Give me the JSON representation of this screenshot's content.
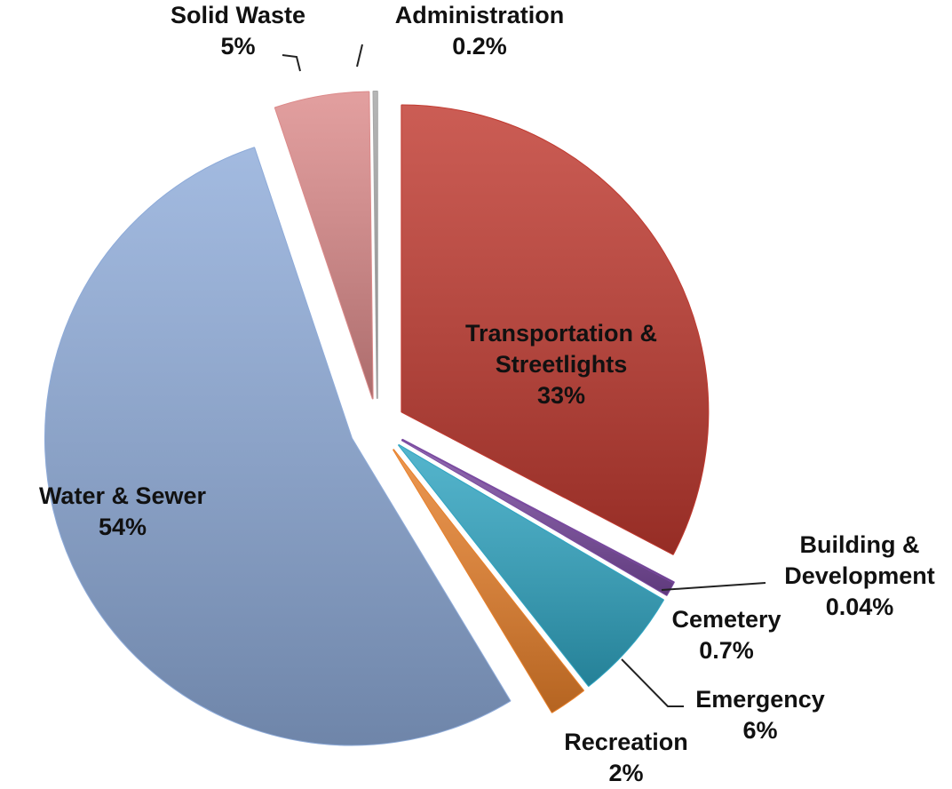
{
  "chart_data": {
    "type": "pie",
    "categories": [
      "Transportation & Streetlights",
      "Building & Development",
      "Cemetery",
      "Emergency",
      "Recreation",
      "Water & Sewer",
      "Solid Waste",
      "Administration"
    ],
    "values": [
      33,
      0.04,
      0.7,
      6,
      2,
      54,
      5,
      0.2
    ],
    "value_labels": [
      "33%",
      "0.04%",
      "0.7%",
      "6%",
      "2%",
      "54%",
      "5%",
      "0.2%"
    ],
    "colors": [
      "#c0392f",
      "#7a4aa0",
      "#7a4aa0",
      "#2fa5c2",
      "#e8802a",
      "#8eabd9",
      "#dc8a8a",
      "#a6a6a6"
    ]
  }
}
